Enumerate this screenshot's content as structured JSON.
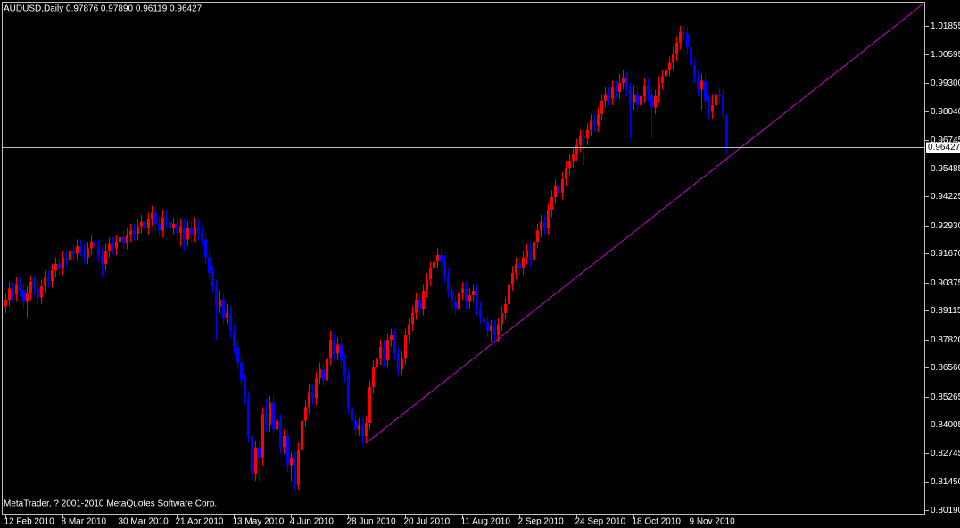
{
  "chart_data": {
    "type": "candlestick",
    "header": "AUDUSD,Daily  0.97876 0.97890 0.96119 0.96427",
    "footer": "MetaTrader, ? 2001-2010 MetaQuotes Software Corp.",
    "up_color": "#ff0000",
    "down_color": "#0000ff",
    "ylim": [
      0.7999,
      1.0293
    ],
    "yticks": [
      {
        "value": 1.01855,
        "label": "1.01855"
      },
      {
        "value": 1.00595,
        "label": "1.00595"
      },
      {
        "value": 0.993,
        "label": "0.99300"
      },
      {
        "value": 0.9804,
        "label": "0.98040"
      },
      {
        "value": 0.96745,
        "label": "0.96745"
      },
      {
        "value": 0.95485,
        "label": "0.95485"
      },
      {
        "value": 0.94225,
        "label": "0.94225"
      },
      {
        "value": 0.9293,
        "label": "0.92930"
      },
      {
        "value": 0.9167,
        "label": "0.91670"
      },
      {
        "value": 0.90375,
        "label": "0.90375"
      },
      {
        "value": 0.89115,
        "label": "0.89115"
      },
      {
        "value": 0.8782,
        "label": "0.87820"
      },
      {
        "value": 0.8656,
        "label": "0.86560"
      },
      {
        "value": 0.85265,
        "label": "0.85265"
      },
      {
        "value": 0.84005,
        "label": "0.84005"
      },
      {
        "value": 0.82745,
        "label": "0.82745"
      },
      {
        "value": 0.8145,
        "label": "0.81450"
      },
      {
        "value": 0.8019,
        "label": "0.80190"
      }
    ],
    "current_price": {
      "value": 0.96427,
      "label": "0.96427",
      "color": "#c0c0c0"
    },
    "trendline": {
      "x": [
        101,
        257.25
      ],
      "y": [
        0.8318,
        1.0285
      ],
      "color": "#cc00cc"
    },
    "categories": [
      "12 Feb 2010",
      null,
      null,
      null,
      null,
      null,
      null,
      null,
      null,
      null,
      null,
      null,
      null,
      null,
      null,
      null,
      "8 Mar 2010",
      null,
      null,
      null,
      null,
      null,
      null,
      null,
      null,
      null,
      null,
      null,
      null,
      null,
      null,
      null,
      "30 Mar 2010",
      null,
      null,
      null,
      null,
      null,
      null,
      null,
      null,
      null,
      null,
      null,
      null,
      null,
      null,
      null,
      "21 Apr 2010",
      null,
      null,
      null,
      null,
      null,
      null,
      null,
      null,
      null,
      null,
      null,
      null,
      null,
      null,
      null,
      "13 May 2010",
      null,
      null,
      null,
      null,
      null,
      null,
      null,
      null,
      null,
      null,
      null,
      null,
      null,
      null,
      null,
      "4 Jun 2010",
      null,
      null,
      null,
      null,
      null,
      null,
      null,
      null,
      null,
      null,
      null,
      null,
      null,
      null,
      null,
      "28 Jun 2010",
      null,
      null,
      null,
      null,
      null,
      null,
      null,
      null,
      null,
      null,
      null,
      null,
      null,
      null,
      null,
      "20 Jul 2010",
      null,
      null,
      null,
      null,
      null,
      null,
      null,
      null,
      null,
      null,
      null,
      null,
      null,
      null,
      null,
      "11 Aug 2010",
      null,
      null,
      null,
      null,
      null,
      null,
      null,
      null,
      null,
      null,
      null,
      null,
      null,
      null,
      null,
      "2 Sep 2010",
      null,
      null,
      null,
      null,
      null,
      null,
      null,
      null,
      null,
      null,
      null,
      null,
      null,
      null,
      null,
      "24 Sep 2010",
      null,
      null,
      null,
      null,
      null,
      null,
      null,
      null,
      null,
      null,
      null,
      null,
      null,
      null,
      null,
      "18 Oct 2010",
      null,
      null,
      null,
      null,
      null,
      null,
      null,
      null,
      null,
      null,
      null,
      null,
      null,
      null,
      null,
      "9 Nov 2010",
      null,
      null,
      null,
      null,
      null,
      null,
      null,
      null,
      null,
      null
    ],
    "ohlc": [
      [
        0.893,
        0.899,
        0.89,
        0.896
      ],
      [
        0.896,
        0.904,
        0.893,
        0.901
      ],
      [
        0.901,
        0.904,
        0.8955,
        0.8985
      ],
      [
        0.8985,
        0.906,
        0.8955,
        0.903
      ],
      [
        0.903,
        0.906,
        0.8975,
        0.9005
      ],
      [
        0.9005,
        0.9035,
        0.892,
        0.895
      ],
      [
        0.895,
        0.902,
        0.888,
        0.899
      ],
      [
        0.899,
        0.907,
        0.896,
        0.904
      ],
      [
        0.904,
        0.907,
        0.898,
        0.901
      ],
      [
        0.901,
        0.904,
        0.894,
        0.897
      ],
      [
        0.897,
        0.905,
        0.894,
        0.902
      ],
      [
        0.902,
        0.909,
        0.899,
        0.906
      ],
      [
        0.906,
        0.909,
        0.9015,
        0.9045
      ],
      [
        0.9045,
        0.912,
        0.9015,
        0.909
      ],
      [
        0.909,
        0.915,
        0.906,
        0.912
      ],
      [
        0.912,
        0.915,
        0.907,
        0.91
      ],
      [
        0.91,
        0.918,
        0.907,
        0.915
      ],
      [
        0.915,
        0.918,
        0.911,
        0.914
      ],
      [
        0.914,
        0.921,
        0.911,
        0.918
      ],
      [
        0.918,
        0.921,
        0.9135,
        0.9165
      ],
      [
        0.9165,
        0.923,
        0.9135,
        0.92
      ],
      [
        0.92,
        0.923,
        0.9155,
        0.9185
      ],
      [
        0.9185,
        0.9215,
        0.912,
        0.915
      ],
      [
        0.915,
        0.922,
        0.912,
        0.919
      ],
      [
        0.919,
        0.925,
        0.916,
        0.922
      ],
      [
        0.922,
        0.925,
        0.917,
        0.92
      ],
      [
        0.92,
        0.923,
        0.913,
        0.916
      ],
      [
        0.916,
        0.919,
        0.906,
        0.912
      ],
      [
        0.912,
        0.921,
        0.909,
        0.918
      ],
      [
        0.918,
        0.924,
        0.915,
        0.921
      ],
      [
        0.921,
        0.924,
        0.916,
        0.919
      ],
      [
        0.919,
        0.925,
        0.916,
        0.922
      ],
      [
        0.922,
        0.927,
        0.919,
        0.924
      ],
      [
        0.924,
        0.927,
        0.9185,
        0.9215
      ],
      [
        0.9215,
        0.928,
        0.9185,
        0.925
      ],
      [
        0.925,
        0.93,
        0.922,
        0.927
      ],
      [
        0.927,
        0.93,
        0.9225,
        0.9255
      ],
      [
        0.9255,
        0.932,
        0.9225,
        0.929
      ],
      [
        0.929,
        0.934,
        0.926,
        0.931
      ],
      [
        0.931,
        0.934,
        0.925,
        0.928
      ],
      [
        0.928,
        0.935,
        0.925,
        0.932
      ],
      [
        0.932,
        0.938,
        0.929,
        0.935
      ],
      [
        0.935,
        0.938,
        0.927,
        0.93
      ],
      [
        0.93,
        0.933,
        0.924,
        0.927
      ],
      [
        0.927,
        0.936,
        0.924,
        0.933
      ],
      [
        0.933,
        0.936,
        0.928,
        0.931
      ],
      [
        0.931,
        0.934,
        0.925,
        0.928
      ],
      [
        0.928,
        0.933,
        0.925,
        0.93
      ],
      [
        0.93,
        0.933,
        0.923,
        0.926
      ],
      [
        0.926,
        0.932,
        0.92,
        0.929
      ],
      [
        0.929,
        0.932,
        0.918,
        0.923
      ],
      [
        0.923,
        0.931,
        0.92,
        0.928
      ],
      [
        0.928,
        0.931,
        0.922,
        0.925
      ],
      [
        0.925,
        0.933,
        0.922,
        0.929
      ],
      [
        0.929,
        0.932,
        0.923,
        0.926
      ],
      [
        0.926,
        0.929,
        0.92,
        0.923
      ],
      [
        0.923,
        0.926,
        0.912,
        0.915
      ],
      [
        0.915,
        0.918,
        0.905,
        0.908
      ],
      [
        0.908,
        0.911,
        0.899,
        0.902
      ],
      [
        0.902,
        0.905,
        0.878,
        0.893
      ],
      [
        0.893,
        0.9,
        0.89,
        0.896
      ],
      [
        0.896,
        0.899,
        0.885,
        0.888
      ],
      [
        0.888,
        0.894,
        0.885,
        0.89
      ],
      [
        0.89,
        0.893,
        0.879,
        0.882
      ],
      [
        0.882,
        0.885,
        0.872,
        0.875
      ],
      [
        0.875,
        0.878,
        0.865,
        0.868
      ],
      [
        0.868,
        0.871,
        0.857,
        0.86
      ],
      [
        0.86,
        0.863,
        0.849,
        0.852
      ],
      [
        0.852,
        0.855,
        0.832,
        0.835
      ],
      [
        0.835,
        0.838,
        0.813,
        0.818
      ],
      [
        0.818,
        0.833,
        0.815,
        0.83
      ],
      [
        0.83,
        0.833,
        0.814,
        0.825
      ],
      [
        0.825,
        0.848,
        0.822,
        0.845
      ],
      [
        0.845,
        0.852,
        0.837,
        0.84
      ],
      [
        0.84,
        0.853,
        0.837,
        0.85
      ],
      [
        0.85,
        0.853,
        0.835,
        0.838
      ],
      [
        0.838,
        0.849,
        0.835,
        0.842
      ],
      [
        0.842,
        0.845,
        0.827,
        0.83
      ],
      [
        0.83,
        0.838,
        0.827,
        0.835
      ],
      [
        0.835,
        0.838,
        0.819,
        0.822
      ],
      [
        0.822,
        0.828,
        0.815,
        0.825
      ],
      [
        0.825,
        0.828,
        0.811,
        0.813
      ],
      [
        0.813,
        0.832,
        0.811,
        0.829
      ],
      [
        0.829,
        0.845,
        0.826,
        0.842
      ],
      [
        0.842,
        0.851,
        0.839,
        0.848
      ],
      [
        0.848,
        0.858,
        0.845,
        0.855
      ],
      [
        0.855,
        0.858,
        0.849,
        0.852
      ],
      [
        0.852,
        0.864,
        0.849,
        0.861
      ],
      [
        0.861,
        0.868,
        0.858,
        0.865
      ],
      [
        0.865,
        0.868,
        0.857,
        0.86
      ],
      [
        0.86,
        0.873,
        0.857,
        0.87
      ],
      [
        0.87,
        0.882,
        0.867,
        0.878
      ],
      [
        0.878,
        0.881,
        0.869,
        0.872
      ],
      [
        0.872,
        0.879,
        0.869,
        0.876
      ],
      [
        0.876,
        0.879,
        0.866,
        0.869
      ],
      [
        0.869,
        0.872,
        0.859,
        0.862
      ],
      [
        0.862,
        0.865,
        0.845,
        0.848
      ],
      [
        0.848,
        0.851,
        0.839,
        0.842
      ],
      [
        0.842,
        0.845,
        0.835,
        0.838
      ],
      [
        0.838,
        0.843,
        0.835,
        0.84
      ],
      [
        0.84,
        0.843,
        0.831,
        0.835
      ],
      [
        0.835,
        0.844,
        0.832,
        0.841
      ],
      [
        0.841,
        0.86,
        0.838,
        0.857
      ],
      [
        0.857,
        0.869,
        0.854,
        0.866
      ],
      [
        0.866,
        0.873,
        0.863,
        0.87
      ],
      [
        0.87,
        0.878,
        0.867,
        0.875
      ],
      [
        0.875,
        0.878,
        0.866,
        0.869
      ],
      [
        0.869,
        0.881,
        0.866,
        0.878
      ],
      [
        0.878,
        0.883,
        0.875,
        0.88
      ],
      [
        0.88,
        0.883,
        0.869,
        0.872
      ],
      [
        0.872,
        0.875,
        0.862,
        0.865
      ],
      [
        0.865,
        0.873,
        0.862,
        0.87
      ],
      [
        0.87,
        0.883,
        0.867,
        0.88
      ],
      [
        0.88,
        0.888,
        0.877,
        0.885
      ],
      [
        0.885,
        0.893,
        0.882,
        0.89
      ],
      [
        0.89,
        0.899,
        0.887,
        0.896
      ],
      [
        0.896,
        0.899,
        0.889,
        0.892
      ],
      [
        0.892,
        0.903,
        0.889,
        0.9
      ],
      [
        0.9,
        0.908,
        0.897,
        0.905
      ],
      [
        0.905,
        0.913,
        0.902,
        0.91
      ],
      [
        0.91,
        0.916,
        0.907,
        0.913
      ],
      [
        0.913,
        0.919,
        0.91,
        0.916
      ],
      [
        0.916,
        0.919,
        0.91,
        0.913
      ],
      [
        0.913,
        0.916,
        0.904,
        0.907
      ],
      [
        0.907,
        0.91,
        0.897,
        0.9
      ],
      [
        0.9,
        0.903,
        0.892,
        0.895
      ],
      [
        0.895,
        0.898,
        0.889,
        0.892
      ],
      [
        0.892,
        0.902,
        0.889,
        0.899
      ],
      [
        0.899,
        0.904,
        0.896,
        0.901
      ],
      [
        0.901,
        0.904,
        0.892,
        0.895
      ],
      [
        0.895,
        0.901,
        0.892,
        0.898
      ],
      [
        0.898,
        0.903,
        0.895,
        0.9
      ],
      [
        0.9,
        0.903,
        0.889,
        0.892
      ],
      [
        0.892,
        0.895,
        0.885,
        0.888
      ],
      [
        0.888,
        0.891,
        0.883,
        0.886
      ],
      [
        0.886,
        0.889,
        0.879,
        0.882
      ],
      [
        0.882,
        0.887,
        0.877,
        0.884
      ],
      [
        0.884,
        0.887,
        0.877,
        0.88
      ],
      [
        0.88,
        0.888,
        0.877,
        0.885
      ],
      [
        0.885,
        0.893,
        0.882,
        0.89
      ],
      [
        0.89,
        0.897,
        0.887,
        0.894
      ],
      [
        0.894,
        0.906,
        0.891,
        0.903
      ],
      [
        0.903,
        0.911,
        0.9,
        0.908
      ],
      [
        0.908,
        0.915,
        0.905,
        0.912
      ],
      [
        0.912,
        0.915,
        0.907,
        0.91
      ],
      [
        0.91,
        0.918,
        0.907,
        0.915
      ],
      [
        0.915,
        0.921,
        0.912,
        0.918
      ],
      [
        0.918,
        0.921,
        0.911,
        0.914
      ],
      [
        0.914,
        0.925,
        0.911,
        0.922
      ],
      [
        0.922,
        0.93,
        0.919,
        0.927
      ],
      [
        0.927,
        0.934,
        0.924,
        0.931
      ],
      [
        0.931,
        0.934,
        0.925,
        0.928
      ],
      [
        0.928,
        0.939,
        0.925,
        0.936
      ],
      [
        0.936,
        0.945,
        0.933,
        0.942
      ],
      [
        0.942,
        0.95,
        0.939,
        0.947
      ],
      [
        0.947,
        0.95,
        0.941,
        0.944
      ],
      [
        0.944,
        0.953,
        0.941,
        0.95
      ],
      [
        0.95,
        0.958,
        0.947,
        0.955
      ],
      [
        0.955,
        0.961,
        0.952,
        0.958
      ],
      [
        0.958,
        0.964,
        0.955,
        0.961
      ],
      [
        0.961,
        0.968,
        0.958,
        0.965
      ],
      [
        0.965,
        0.972,
        0.962,
        0.969
      ],
      [
        0.969,
        0.972,
        0.956,
        0.968
      ],
      [
        0.968,
        0.975,
        0.965,
        0.972
      ],
      [
        0.972,
        0.979,
        0.969,
        0.976
      ],
      [
        0.976,
        0.979,
        0.971,
        0.974
      ],
      [
        0.974,
        0.982,
        0.971,
        0.979
      ],
      [
        0.979,
        0.988,
        0.976,
        0.985
      ],
      [
        0.985,
        0.991,
        0.982,
        0.988
      ],
      [
        0.988,
        0.991,
        0.983,
        0.986
      ],
      [
        0.986,
        0.994,
        0.983,
        0.991
      ],
      [
        0.991,
        0.994,
        0.986,
        0.989
      ],
      [
        0.989,
        0.997,
        0.986,
        0.993
      ],
      [
        0.993,
        0.999,
        0.99,
        0.995
      ],
      [
        0.995,
        0.998,
        0.987,
        0.99
      ],
      [
        0.99,
        0.993,
        0.968,
        0.984
      ],
      [
        0.984,
        0.992,
        0.981,
        0.988
      ],
      [
        0.988,
        0.991,
        0.98,
        0.983
      ],
      [
        0.983,
        0.99,
        0.98,
        0.987
      ],
      [
        0.987,
        0.995,
        0.984,
        0.992
      ],
      [
        0.992,
        0.995,
        0.985,
        0.988
      ],
      [
        0.988,
        0.991,
        0.968,
        0.982
      ],
      [
        0.982,
        0.99,
        0.979,
        0.987
      ],
      [
        0.987,
        0.996,
        0.984,
        0.993
      ],
      [
        0.993,
        0.999,
        0.99,
        0.996
      ],
      [
        0.996,
        1.002,
        0.993,
        0.999
      ],
      [
        0.999,
        1.005,
        0.996,
        1.002
      ],
      [
        1.002,
        1.009,
        0.999,
        1.006
      ],
      [
        1.006,
        1.014,
        1.003,
        1.011
      ],
      [
        1.011,
        1.0186,
        1.008,
        1.016
      ],
      [
        1.016,
        1.0185,
        1.012,
        1.015
      ],
      [
        1.015,
        1.018,
        1.006,
        1.009
      ],
      [
        1.009,
        1.012,
        0.998,
        1.001
      ],
      [
        1.001,
        1.004,
        0.993,
        0.996
      ],
      [
        0.996,
        0.999,
        0.987,
        0.99
      ],
      [
        0.99,
        0.997,
        0.981,
        0.994
      ],
      [
        0.994,
        0.997,
        0.982,
        0.985
      ],
      [
        0.985,
        0.988,
        0.977,
        0.98
      ],
      [
        0.98,
        0.988,
        0.977,
        0.983
      ],
      [
        0.983,
        0.991,
        0.98,
        0.988
      ],
      [
        0.988,
        0.991,
        0.984,
        0.987
      ],
      [
        0.987,
        0.99,
        0.976,
        0.9788
      ],
      [
        0.97876,
        0.9789,
        0.96119,
        0.96427
      ]
    ]
  }
}
